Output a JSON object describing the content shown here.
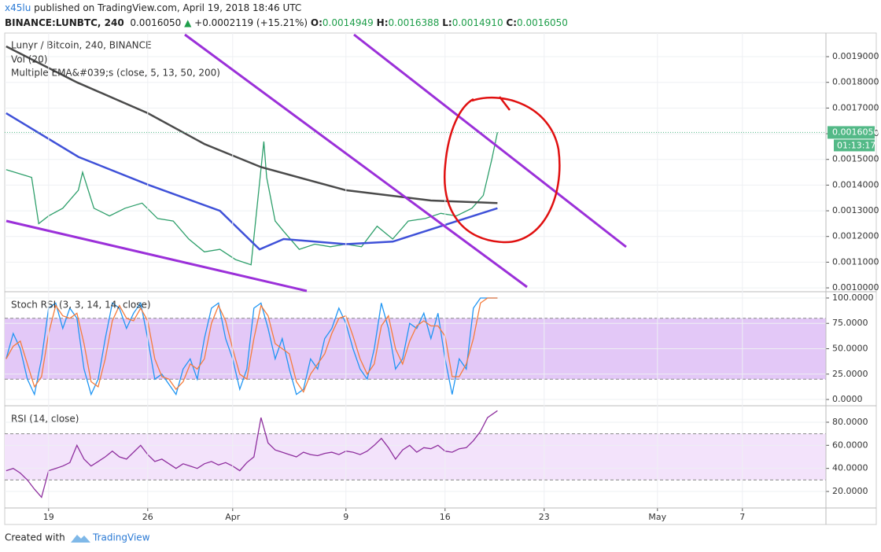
{
  "header": {
    "author": "x45lu",
    "published": "published on TradingView.com, April 19, 2018 18:46 UTC",
    "symbol": "BINANCE:LUNBTC, 240",
    "last": "0.0016050",
    "change": "+0.0002119 (+15.21%)",
    "ohlc": [
      {
        "label": "O:",
        "value": "0.0014949"
      },
      {
        "label": "H:",
        "value": "0.0016388"
      },
      {
        "label": "L:",
        "value": "0.0014910"
      },
      {
        "label": "C:",
        "value": "0.0016050"
      }
    ]
  },
  "chart_data": [
    {
      "type": "line",
      "title": "Lunyr / Bitcoin, 240, BINANCE",
      "indicators": [
        "Vol (20)",
        "Multiple EMA&#039;s (close, 5, 13, 50, 200)"
      ],
      "xlim": [
        -3.1,
        54.9
      ],
      "ylim": [
        0.000988,
        0.001992
      ],
      "yticks": [
        {
          "value": 0.001,
          "label": "0.0010000"
        },
        {
          "value": 0.0011,
          "label": "0.0011000"
        },
        {
          "value": 0.0012,
          "label": "0.0012000"
        },
        {
          "value": 0.0013,
          "label": "0.0013000"
        },
        {
          "value": 0.0014,
          "label": "0.0014000"
        },
        {
          "value": 0.0015,
          "label": "0.0015000"
        },
        {
          "value": 0.0016,
          "label": "0.0016000"
        },
        {
          "value": 0.0017,
          "label": "0.0017000"
        },
        {
          "value": 0.0018,
          "label": "0.0018000"
        },
        {
          "value": 0.0019,
          "label": "0.0019000"
        }
      ],
      "last_price": {
        "value": 0.001605,
        "label": "0.0016050"
      },
      "countdown": "01:13:17",
      "series": [
        {
          "color": "#2e9f6b",
          "x": [
            -3,
            -1.2,
            -0.7,
            0,
            1,
            2.1,
            2.4,
            3.2,
            4.3,
            5.4,
            6.6,
            7.7,
            8.8,
            9.9,
            11,
            12.1,
            13.2,
            14.3,
            15.2,
            15.4,
            16,
            16.6,
            17.7,
            18.8,
            19.9,
            21,
            22.1,
            23.2,
            24.3,
            25.4,
            26.6,
            27.7,
            28.8,
            29.9,
            30.7,
            31.3,
            31.7
          ],
          "values": [
            0.00146,
            0.00143,
            0.00125,
            0.00128,
            0.00131,
            0.00138,
            0.00145,
            0.00131,
            0.00128,
            0.00131,
            0.00133,
            0.00127,
            0.00126,
            0.00119,
            0.00114,
            0.00115,
            0.00111,
            0.00109,
            0.00157,
            0.00143,
            0.00126,
            0.00122,
            0.00115,
            0.00117,
            0.00116,
            0.00117,
            0.00116,
            0.00124,
            0.00119,
            0.00126,
            0.00127,
            0.00129,
            0.00128,
            0.00131,
            0.00136,
            0.0015,
            0.001605
          ]
        },
        {
          "color": "#4a4a4a",
          "x": [
            -3,
            2,
            7,
            11,
            15,
            21,
            27,
            31.7
          ],
          "values": [
            0.00194,
            0.0018,
            0.00168,
            0.00156,
            0.00147,
            0.00138,
            0.00134,
            0.00133
          ]
        },
        {
          "color": "#3f51d8",
          "x": [
            -3,
            2.1,
            7.1,
            12.1,
            14.9,
            16.6,
            21,
            24.3,
            27.7,
            31.7
          ],
          "values": [
            0.00168,
            0.00151,
            0.0014,
            0.0013,
            0.00115,
            0.00119,
            0.00117,
            0.00118,
            0.00124,
            0.00131
          ]
        }
      ]
    },
    {
      "type": "line",
      "title": "Stoch RSI (3, 3, 14, 14, close)",
      "xlim": [
        -3.1,
        54.9
      ],
      "ylim": [
        -5.4,
        105.4
      ],
      "band": [
        20,
        80
      ],
      "yticks": [
        {
          "value": 0,
          "label": "0.0000"
        },
        {
          "value": 25,
          "label": "25.0000"
        },
        {
          "value": 50,
          "label": "50.0000"
        },
        {
          "value": 75,
          "label": "75.0000"
        },
        {
          "value": 100,
          "label": "100.0000"
        }
      ],
      "x": [
        -3,
        -2.5,
        -2,
        -1.5,
        -1,
        -0.5,
        0,
        0.5,
        1,
        1.5,
        2,
        2.5,
        3,
        3.5,
        4,
        4.5,
        5,
        5.5,
        6,
        6.5,
        7,
        7.5,
        8,
        8.5,
        9,
        9.5,
        10,
        10.5,
        11,
        11.5,
        12,
        12.5,
        13,
        13.5,
        14,
        14.5,
        15,
        15.5,
        16,
        16.5,
        17,
        17.5,
        18,
        18.5,
        19,
        19.5,
        20,
        20.5,
        21,
        21.5,
        22,
        22.5,
        23,
        23.5,
        24,
        24.5,
        25,
        25.5,
        26,
        26.5,
        27,
        27.5,
        28,
        28.5,
        29,
        29.5,
        30,
        30.5,
        31,
        31.7
      ],
      "series": [
        {
          "color": "#2196f3",
          "values": [
            40,
            65,
            50,
            20,
            5,
            40,
            90,
            95,
            70,
            90,
            80,
            30,
            5,
            20,
            60,
            95,
            90,
            70,
            85,
            95,
            60,
            20,
            25,
            15,
            5,
            30,
            40,
            20,
            60,
            90,
            95,
            60,
            40,
            10,
            30,
            90,
            95,
            70,
            40,
            60,
            30,
            5,
            10,
            40,
            30,
            60,
            70,
            90,
            75,
            50,
            30,
            20,
            50,
            95,
            70,
            30,
            40,
            75,
            70,
            85,
            60,
            85,
            40,
            5,
            40,
            30,
            90,
            100,
            100,
            100
          ]
        },
        {
          "color": "#f57c3c",
          "values": [
            40,
            52.5,
            57.5,
            35,
            12.5,
            22.5,
            65,
            92.5,
            82.5,
            80,
            85,
            55,
            17.5,
            12.5,
            40,
            77.5,
            92.5,
            80,
            77.5,
            90,
            77.5,
            40,
            22.5,
            20,
            10,
            17.5,
            35,
            30,
            40,
            75,
            92.5,
            77.5,
            50,
            25,
            20,
            60,
            92.5,
            82.5,
            55,
            50,
            45,
            17.5,
            7.5,
            25,
            35,
            45,
            65,
            80,
            82.5,
            62.5,
            40,
            25,
            35,
            72.5,
            82.5,
            50,
            35,
            57.5,
            72.5,
            77.5,
            72.5,
            72.5,
            62.5,
            22.5,
            22.5,
            35,
            60,
            95,
            100,
            100
          ]
        }
      ]
    },
    {
      "type": "line",
      "title": "RSI (14, close)",
      "xlim": [
        -3.1,
        54.9
      ],
      "ylim": [
        6.4,
        93.6
      ],
      "band": [
        30,
        70
      ],
      "yticks": [
        {
          "value": 20,
          "label": "20.0000"
        },
        {
          "value": 40,
          "label": "40.0000"
        },
        {
          "value": 60,
          "label": "60.0000"
        },
        {
          "value": 80,
          "label": "80.0000"
        }
      ],
      "xticks": [
        {
          "value": 0,
          "label": "19"
        },
        {
          "value": 7,
          "label": "26"
        },
        {
          "value": 13,
          "label": "Apr"
        },
        {
          "value": 21,
          "label": "9"
        },
        {
          "value": 28,
          "label": "16"
        },
        {
          "value": 35,
          "label": "23"
        },
        {
          "value": 43,
          "label": "May"
        },
        {
          "value": 49,
          "label": "7"
        }
      ],
      "x": [
        -3,
        -2.5,
        -2,
        -1.5,
        -1,
        -0.5,
        0,
        0.5,
        1,
        1.5,
        2,
        2.5,
        3,
        3.5,
        4,
        4.5,
        5,
        5.5,
        6,
        6.5,
        7,
        7.5,
        8,
        8.5,
        9,
        9.5,
        10,
        10.5,
        11,
        11.5,
        12,
        12.5,
        13,
        13.5,
        14,
        14.5,
        15,
        15.5,
        16,
        16.5,
        17,
        17.5,
        18,
        18.5,
        19,
        19.5,
        20,
        20.5,
        21,
        21.5,
        22,
        22.5,
        23,
        23.5,
        24,
        24.5,
        25,
        25.5,
        26,
        26.5,
        27,
        27.5,
        28,
        28.5,
        29,
        29.5,
        30,
        30.5,
        31,
        31.7
      ],
      "series": [
        {
          "color": "#8e2f9e",
          "values": [
            38,
            40,
            36,
            30,
            22,
            15,
            38,
            40,
            42,
            45,
            60,
            48,
            42,
            46,
            50,
            55,
            50,
            48,
            54,
            60,
            52,
            46,
            48,
            44,
            40,
            44,
            42,
            40,
            44,
            46,
            43,
            45,
            42,
            38,
            45,
            50,
            84,
            62,
            56,
            54,
            52,
            50,
            54,
            52,
            51,
            53,
            54,
            52,
            55,
            54,
            52,
            55,
            60,
            66,
            58,
            48,
            56,
            60,
            54,
            58,
            57,
            60,
            55,
            54,
            57,
            58,
            64,
            72,
            84,
            90
          ]
        }
      ]
    }
  ],
  "footer": {
    "text": "Created with",
    "brand": "TradingView"
  }
}
